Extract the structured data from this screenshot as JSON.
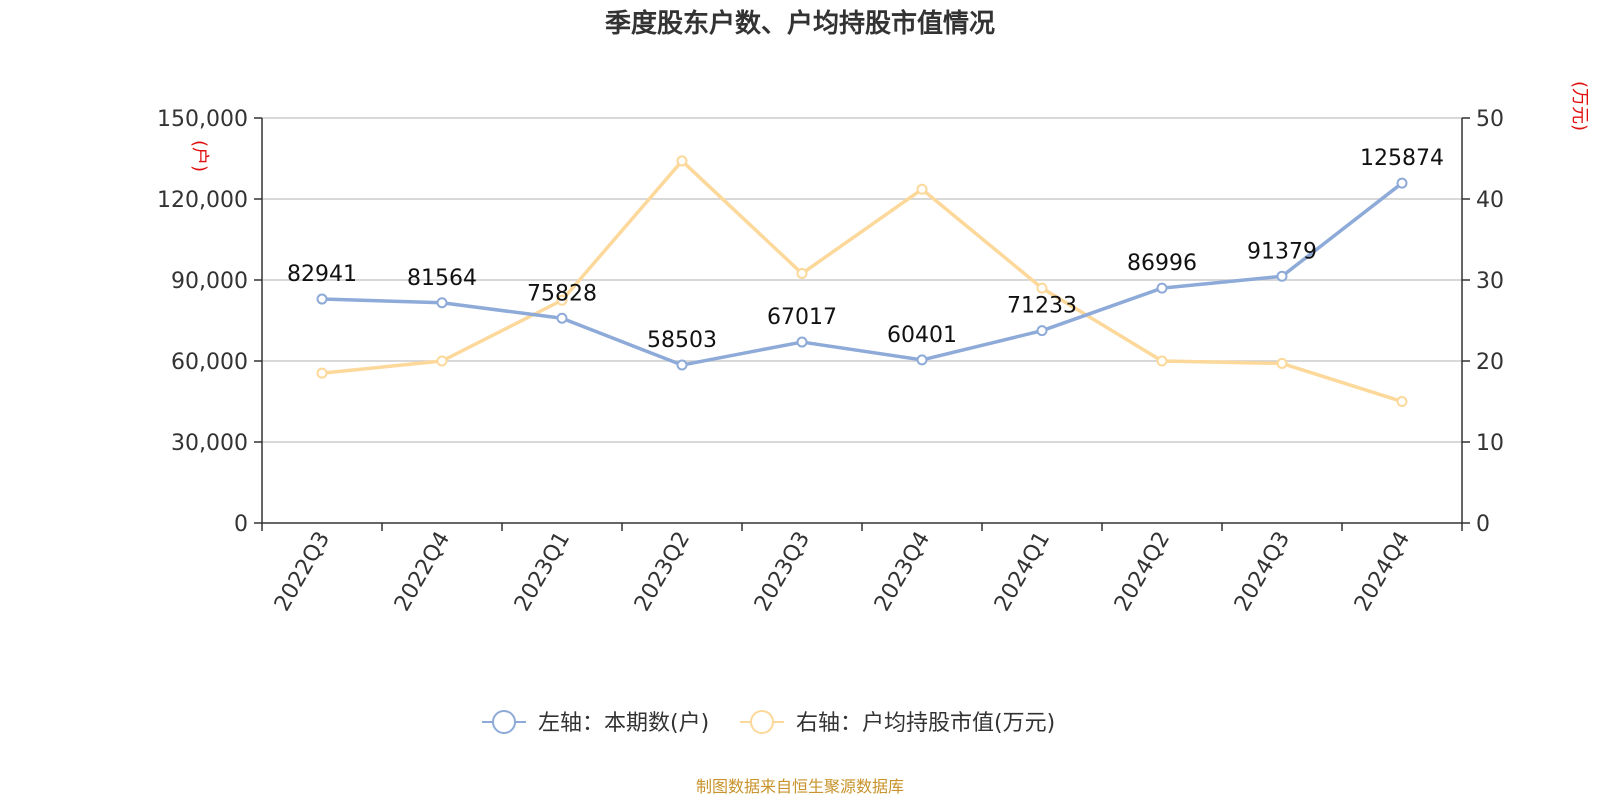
{
  "chart_data": {
    "type": "line",
    "title": "季度股东户数、户均持股市值情况",
    "categories": [
      "2022Q3",
      "2022Q4",
      "2023Q1",
      "2023Q2",
      "2023Q3",
      "2023Q4",
      "2024Q1",
      "2024Q2",
      "2024Q3",
      "2024Q4"
    ],
    "y_left": {
      "unit": "(户)",
      "range": [
        0,
        150000
      ],
      "ticks": [
        0,
        30000,
        60000,
        90000,
        120000,
        150000
      ],
      "tick_labels": [
        "0",
        "30,000",
        "60,000",
        "90,000",
        "120,000",
        "150,000"
      ]
    },
    "y_right": {
      "unit": "(万元)",
      "range": [
        0,
        50
      ],
      "ticks": [
        0,
        10,
        20,
        30,
        40,
        50
      ],
      "tick_labels": [
        "0",
        "10",
        "20",
        "30",
        "40",
        "50"
      ]
    },
    "grid": true,
    "legend_position": "bottom",
    "series": [
      {
        "name": "左轴：本期数(户)",
        "axis": "left",
        "color": "#8eaad8",
        "values": [
          82941,
          81564,
          75828,
          58503,
          67017,
          60401,
          71233,
          86996,
          91379,
          125874
        ],
        "labels": [
          "82941",
          "81564",
          "75828",
          "58503",
          "67017",
          "60401",
          "71233",
          "86996",
          "91379",
          "125874"
        ]
      },
      {
        "name": "右轴：户均持股市值(万元)",
        "axis": "right",
        "color": "#fcd89a",
        "values": [
          18.5,
          20.0,
          27.5,
          44.7,
          30.8,
          41.2,
          29.0,
          20.0,
          19.7,
          15.0
        ]
      }
    ],
    "source": "制图数据来自恒生聚源数据库"
  }
}
